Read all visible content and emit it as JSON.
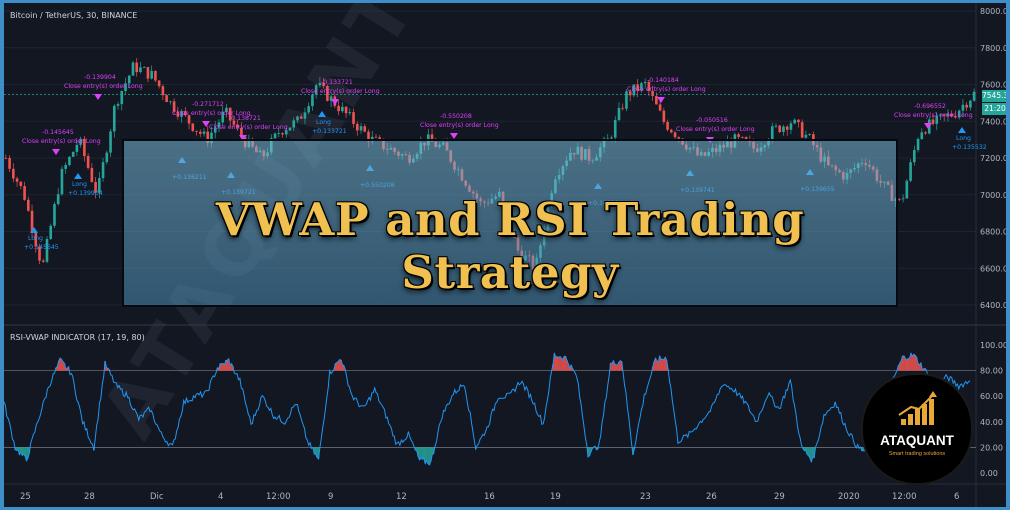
{
  "symbol": "Bitcoin / TetherUS, 30, BINANCE",
  "indicator_label": "RSI-VWAP INDICATOR (17, 19, 80)",
  "banner_title": "VWAP and RSI Trading Strategy",
  "logo": {
    "name": "ATAQUANT",
    "tagline": "Smart trading solutions"
  },
  "watermark": "ATAQUANT",
  "last_price": "7545.39",
  "countdown": "21:20",
  "colors": {
    "bg": "#131722",
    "up": "#26a69a",
    "down": "#ef5350",
    "rsi_line": "#2196f3",
    "overbought_fill": "#ef5350",
    "oversold_fill": "#26a69a",
    "frame": "#3e8fc7",
    "banner_text": "#f0c050",
    "signal_text": "#e040fb"
  },
  "price_axis_labels": [
    "8000.00",
    "7800.00",
    "7600.00",
    "7400.00",
    "7200.00",
    "7000.00",
    "6800.00",
    "6600.00",
    "6400.00"
  ],
  "rsi_axis_labels": [
    "100.00",
    "80.00",
    "60.00",
    "40.00",
    "20.00",
    "0.00"
  ],
  "date_labels": [
    "25",
    "28",
    "Dic",
    "4",
    "12:00",
    "9",
    "12",
    "16",
    "19",
    "23",
    "26",
    "29",
    "2020",
    "12:00",
    "6"
  ],
  "signals": [
    {
      "type": "exit",
      "text": "-0.145645"
    },
    {
      "type": "exit",
      "text": "Close entry(s) order Long"
    },
    {
      "type": "exit",
      "text": "-0.139904"
    },
    {
      "type": "exit",
      "text": "Close entry(s) order Long"
    },
    {
      "type": "exit",
      "text": "-0.271712"
    },
    {
      "type": "exit",
      "text": "Close entry(s) order Long"
    },
    {
      "type": "exit",
      "text": "-0.138721"
    },
    {
      "type": "exit",
      "text": "Close entry(s) order Long"
    },
    {
      "type": "exit",
      "text": "-0.133721"
    },
    {
      "type": "exit",
      "text": "Close entry(s) order Long"
    },
    {
      "type": "exit",
      "text": "-0.550208"
    },
    {
      "type": "exit",
      "text": "Close entry(s) order Long"
    },
    {
      "type": "exit",
      "text": "-0.140184"
    },
    {
      "type": "exit",
      "text": "Close entry(s) order Long"
    },
    {
      "type": "exit",
      "text": "-0.050516"
    },
    {
      "type": "exit",
      "text": "Close entry(s) order Long"
    },
    {
      "type": "exit",
      "text": "-0.696552"
    },
    {
      "type": "exit",
      "text": "Close entry(s) order Long"
    },
    {
      "type": "entry",
      "text": "Long"
    },
    {
      "type": "entry",
      "text": "+0.145645"
    },
    {
      "type": "entry",
      "text": "Long"
    },
    {
      "type": "entry",
      "text": "+0.139904"
    },
    {
      "type": "entry",
      "text": "+0.136211"
    },
    {
      "type": "entry",
      "text": "+0.139721"
    },
    {
      "type": "entry",
      "text": "Long"
    },
    {
      "type": "entry",
      "text": "+0.133721"
    },
    {
      "type": "entry",
      "text": "+0.550208"
    },
    {
      "type": "entry",
      "text": "+0.140184"
    },
    {
      "type": "entry",
      "text": "+0.139741"
    },
    {
      "type": "entry",
      "text": "+0.139655"
    },
    {
      "type": "entry",
      "text": "Long"
    },
    {
      "type": "entry",
      "text": "+0.135532"
    }
  ],
  "chart_data": [
    {
      "type": "candlestick",
      "title": "Bitcoin / TetherUS, 30, BINANCE",
      "ylim": [
        6400,
        8000
      ],
      "x_ticks": [
        "25",
        "28",
        "Dic",
        "4",
        "12:00",
        "9",
        "12",
        "16",
        "19",
        "23",
        "26",
        "29",
        "2020",
        "12:00",
        "6"
      ],
      "close_anchors": [
        7200,
        7000,
        6600,
        7100,
        7300,
        7000,
        7500,
        7700,
        7650,
        7500,
        7400,
        7300,
        7450,
        7300,
        7200,
        7350,
        7400,
        7600,
        7500,
        7400,
        7300,
        7250,
        7200,
        7300,
        7250,
        7100,
        6950,
        7000,
        6700,
        6600,
        7100,
        7250,
        7200,
        7300,
        7550,
        7600,
        7400,
        7300,
        7200,
        7250,
        7300,
        7250,
        7350,
        7400,
        7300,
        7150,
        7100,
        7200,
        7050,
        6950,
        7350,
        7400,
        7450,
        7550
      ],
      "last_price": 7545.39
    },
    {
      "type": "line",
      "title": "RSI-VWAP INDICATOR (17, 19, 80)",
      "ylim": [
        0,
        100
      ],
      "overbought": 80,
      "oversold": 20,
      "series": [
        {
          "values": [
            55,
            20,
            10,
            40,
            68,
            88,
            78,
            40,
            20,
            85,
            68,
            60,
            42,
            50,
            30,
            20,
            55,
            60,
            62,
            82,
            88,
            72,
            38,
            60,
            45,
            40,
            55,
            25,
            10,
            78,
            90,
            60,
            50,
            65,
            45,
            22,
            30,
            10,
            8,
            45,
            62,
            70,
            20,
            35,
            60,
            60,
            72,
            58,
            38,
            92,
            90,
            75,
            15,
            22,
            85,
            88,
            15,
            60,
            88,
            90,
            25,
            30,
            40,
            50,
            70,
            65,
            55,
            40,
            62,
            50,
            72,
            20,
            10,
            45,
            55,
            35,
            20,
            15,
            60,
            70,
            90,
            92,
            80,
            70,
            75,
            68,
            72
          ]
        }
      ]
    }
  ]
}
